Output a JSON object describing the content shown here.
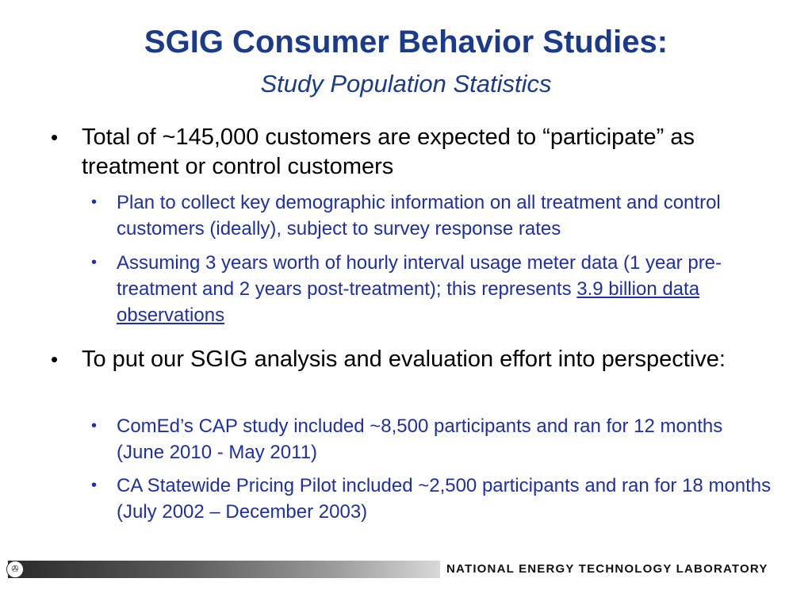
{
  "slide": {
    "title": "SGIG Consumer Behavior Studies:",
    "subtitle": "Study Population Statistics",
    "bullets": [
      {
        "text": "Total of ~145,000 customers are expected to “participate” as treatment or control customers",
        "sub": [
          {
            "text": "Plan to collect key demographic information on all treatment and control customers (ideally), subject to survey response rates"
          },
          {
            "text_before": "Assuming 3 years worth of hourly interval usage meter data (1 year pre-treatment and 2 years post-treatment); this represents ",
            "link": "3.9 billion data observations"
          }
        ]
      },
      {
        "text": "To put our SGIG analysis and evaluation effort into perspective:",
        "sub": [
          {
            "text": "ComEd’s CAP study included ~8,500 participants and ran for 12 months (June 2010 - May 2011)"
          },
          {
            "text": "CA Statewide Pricing Pilot included ~2,500 participants and ran for 18 months (July 2002 – December 2003)"
          }
        ]
      }
    ],
    "bullet_char": "•"
  },
  "footer": {
    "org": "NATIONAL ENERGY TECHNOLOGY LABORATORY"
  },
  "colors": {
    "title": "#1a3a8c",
    "sub_bullet": "#1e2fa8",
    "body": "#000000"
  }
}
